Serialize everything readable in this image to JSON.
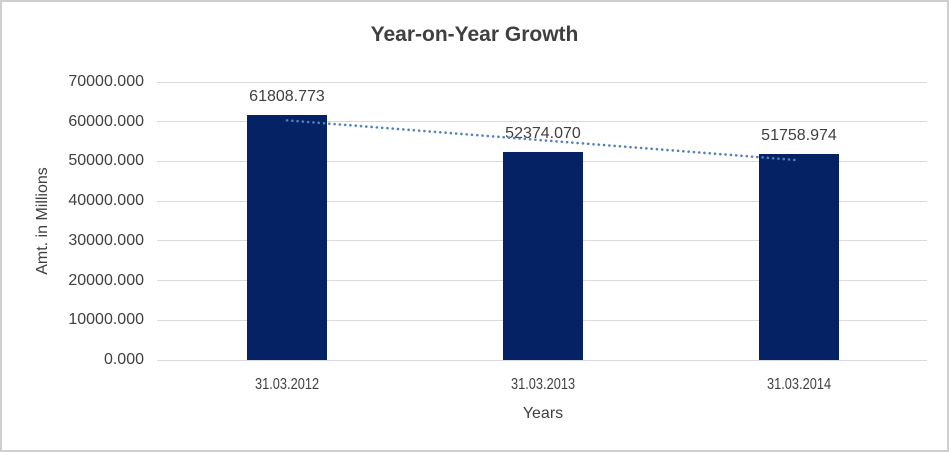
{
  "chart": {
    "colors": {
      "bar": "#052264",
      "trendline": "#4f81bd",
      "grid": "#d9d9d9",
      "text": "#404040",
      "border": "#d0cece",
      "background": "#ffffff"
    }
  },
  "chart_data": {
    "type": "bar",
    "title": "Year-on-Year Growth",
    "categories": [
      "31.03.2012",
      "31.03.2013",
      "31.03.2014"
    ],
    "values": [
      61808.773,
      52374.07,
      51758.974
    ],
    "data_labels": [
      "61808.773",
      "52374.070",
      "51758.974"
    ],
    "xlabel": "Years",
    "ylabel": "Amt. in Millions",
    "ylim": [
      0,
      70000
    ],
    "y_tick_step": 10000,
    "y_tick_labels": [
      "0.000",
      "10000.000",
      "20000.000",
      "30000.000",
      "40000.000",
      "50000.000",
      "60000.000",
      "70000.000"
    ],
    "grid": true,
    "legend": "none",
    "trendline": {
      "type": "linear",
      "style": "dotted"
    }
  }
}
